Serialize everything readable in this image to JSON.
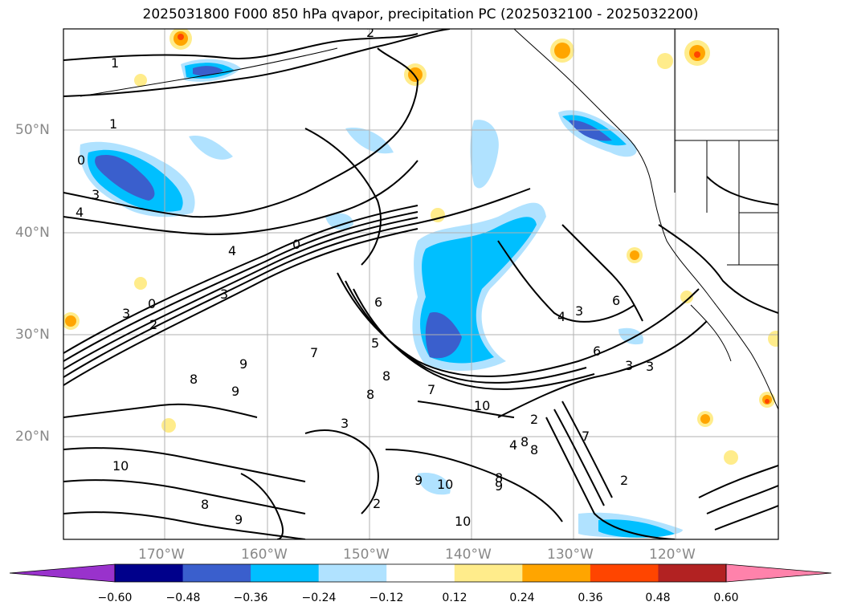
{
  "title": "2025031800 F000 850 hPa qvapor, precipitation PC (2025032100 - 2025032200)",
  "lon_labels": [
    "170°W",
    "160°W",
    "150°W",
    "140°W",
    "130°W",
    "120°W"
  ],
  "lat_labels": [
    "50°N",
    "40°N",
    "30°N",
    "20°N"
  ],
  "colorbar": {
    "ticks": [
      "−0.60",
      "−0.48",
      "−0.36",
      "−0.24",
      "−0.12",
      "0.12",
      "0.24",
      "0.36",
      "0.48",
      "0.60"
    ],
    "colors": [
      "#9932cc",
      "#00008b",
      "#3a5fcd",
      "#00bfff",
      "#b0e2ff",
      "#ffffff",
      "#ffec8b",
      "#ffa500",
      "#ff4500",
      "#b22222",
      "#ff82ab"
    ]
  },
  "contour_labels": [
    "1",
    "1",
    "2",
    "0",
    "4",
    "3",
    "4",
    "0",
    "0",
    "3",
    "2",
    "3",
    "6",
    "5",
    "7",
    "8",
    "9",
    "8",
    "9",
    "8",
    "7",
    "10",
    "10",
    "8",
    "9",
    "2",
    "3",
    "3",
    "4",
    "6",
    "7",
    "8",
    "6",
    "2",
    "3",
    "3",
    "8",
    "2",
    "4",
    "8",
    "10",
    "9",
    "9",
    "10"
  ]
}
